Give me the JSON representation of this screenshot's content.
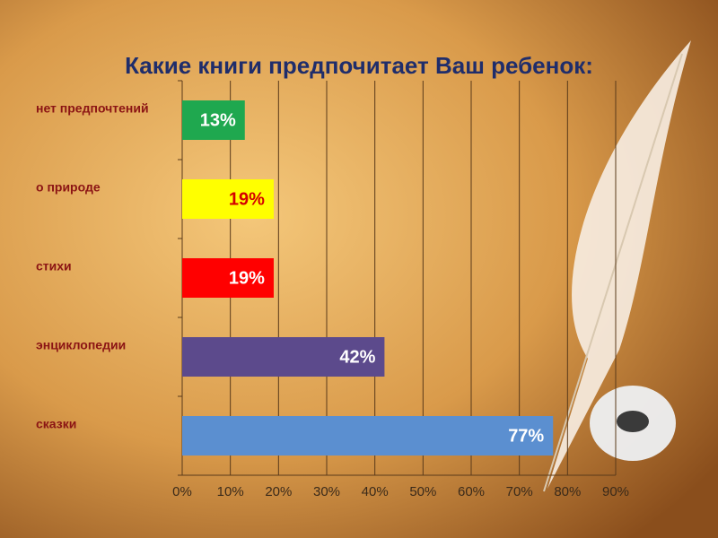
{
  "chart_data": {
    "type": "hbar",
    "title": "Какие книги  предпочитает Ваш ребенок:",
    "categories": [
      "нет предпочтений",
      "о природе",
      "стихи",
      "энциклопедии",
      "сказки"
    ],
    "values": [
      13,
      19,
      19,
      42,
      77
    ],
    "value_labels": [
      "13%",
      "19%",
      "19%",
      "42%",
      "77%"
    ],
    "colors": [
      "#1fa84f",
      "#ffff00",
      "#ff0000",
      "#5c4a8c",
      "#5b8fd0"
    ],
    "value_label_colors": [
      "#ffffff",
      "#d40000",
      "#ffffff",
      "#ffffff",
      "#ffffff"
    ],
    "xlim": [
      0,
      90
    ],
    "xticks": [
      {
        "value": 0,
        "label": "0%"
      },
      {
        "value": 10,
        "label": "10%"
      },
      {
        "value": 20,
        "label": "20%"
      },
      {
        "value": 30,
        "label": "30%"
      },
      {
        "value": 40,
        "label": "40%"
      },
      {
        "value": 50,
        "label": "50%"
      },
      {
        "value": 60,
        "label": "60%"
      },
      {
        "value": 70,
        "label": "70%"
      },
      {
        "value": 80,
        "label": "80%"
      },
      {
        "value": 90,
        "label": "90%"
      }
    ],
    "grid": true
  }
}
